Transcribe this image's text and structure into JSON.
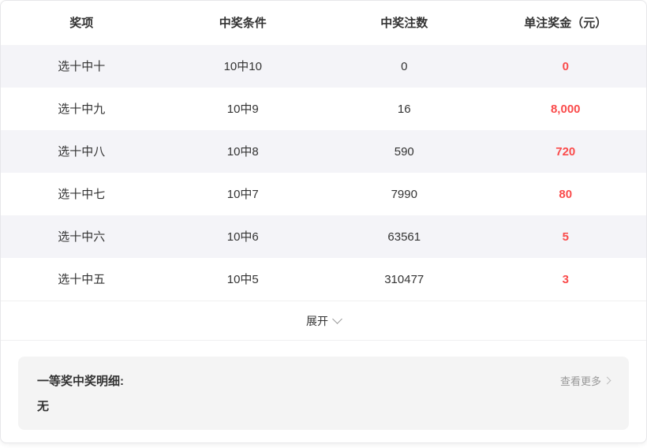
{
  "colors": {
    "highlight_red": "#fa4b4b",
    "row_stripe": "#f4f4f8",
    "panel_bg": "#f4f4f4"
  },
  "table": {
    "headers": [
      "奖项",
      "中奖条件",
      "中奖注数",
      "单注奖金（元）"
    ],
    "rows": [
      {
        "prize": "选十中十",
        "condition": "10中10",
        "count": "0",
        "amount": "0"
      },
      {
        "prize": "选十中九",
        "condition": "10中9",
        "count": "16",
        "amount": "8,000"
      },
      {
        "prize": "选十中八",
        "condition": "10中8",
        "count": "590",
        "amount": "720"
      },
      {
        "prize": "选十中七",
        "condition": "10中7",
        "count": "7990",
        "amount": "80"
      },
      {
        "prize": "选十中六",
        "condition": "10中6",
        "count": "63561",
        "amount": "5"
      },
      {
        "prize": "选十中五",
        "condition": "10中5",
        "count": "310477",
        "amount": "3"
      }
    ]
  },
  "expand": {
    "label": "展开",
    "icon": "chevron-down-icon"
  },
  "details": {
    "title": "一等奖中奖明细:",
    "value": "无",
    "more_label": "查看更多",
    "more_icon": "chevron-right-icon"
  }
}
